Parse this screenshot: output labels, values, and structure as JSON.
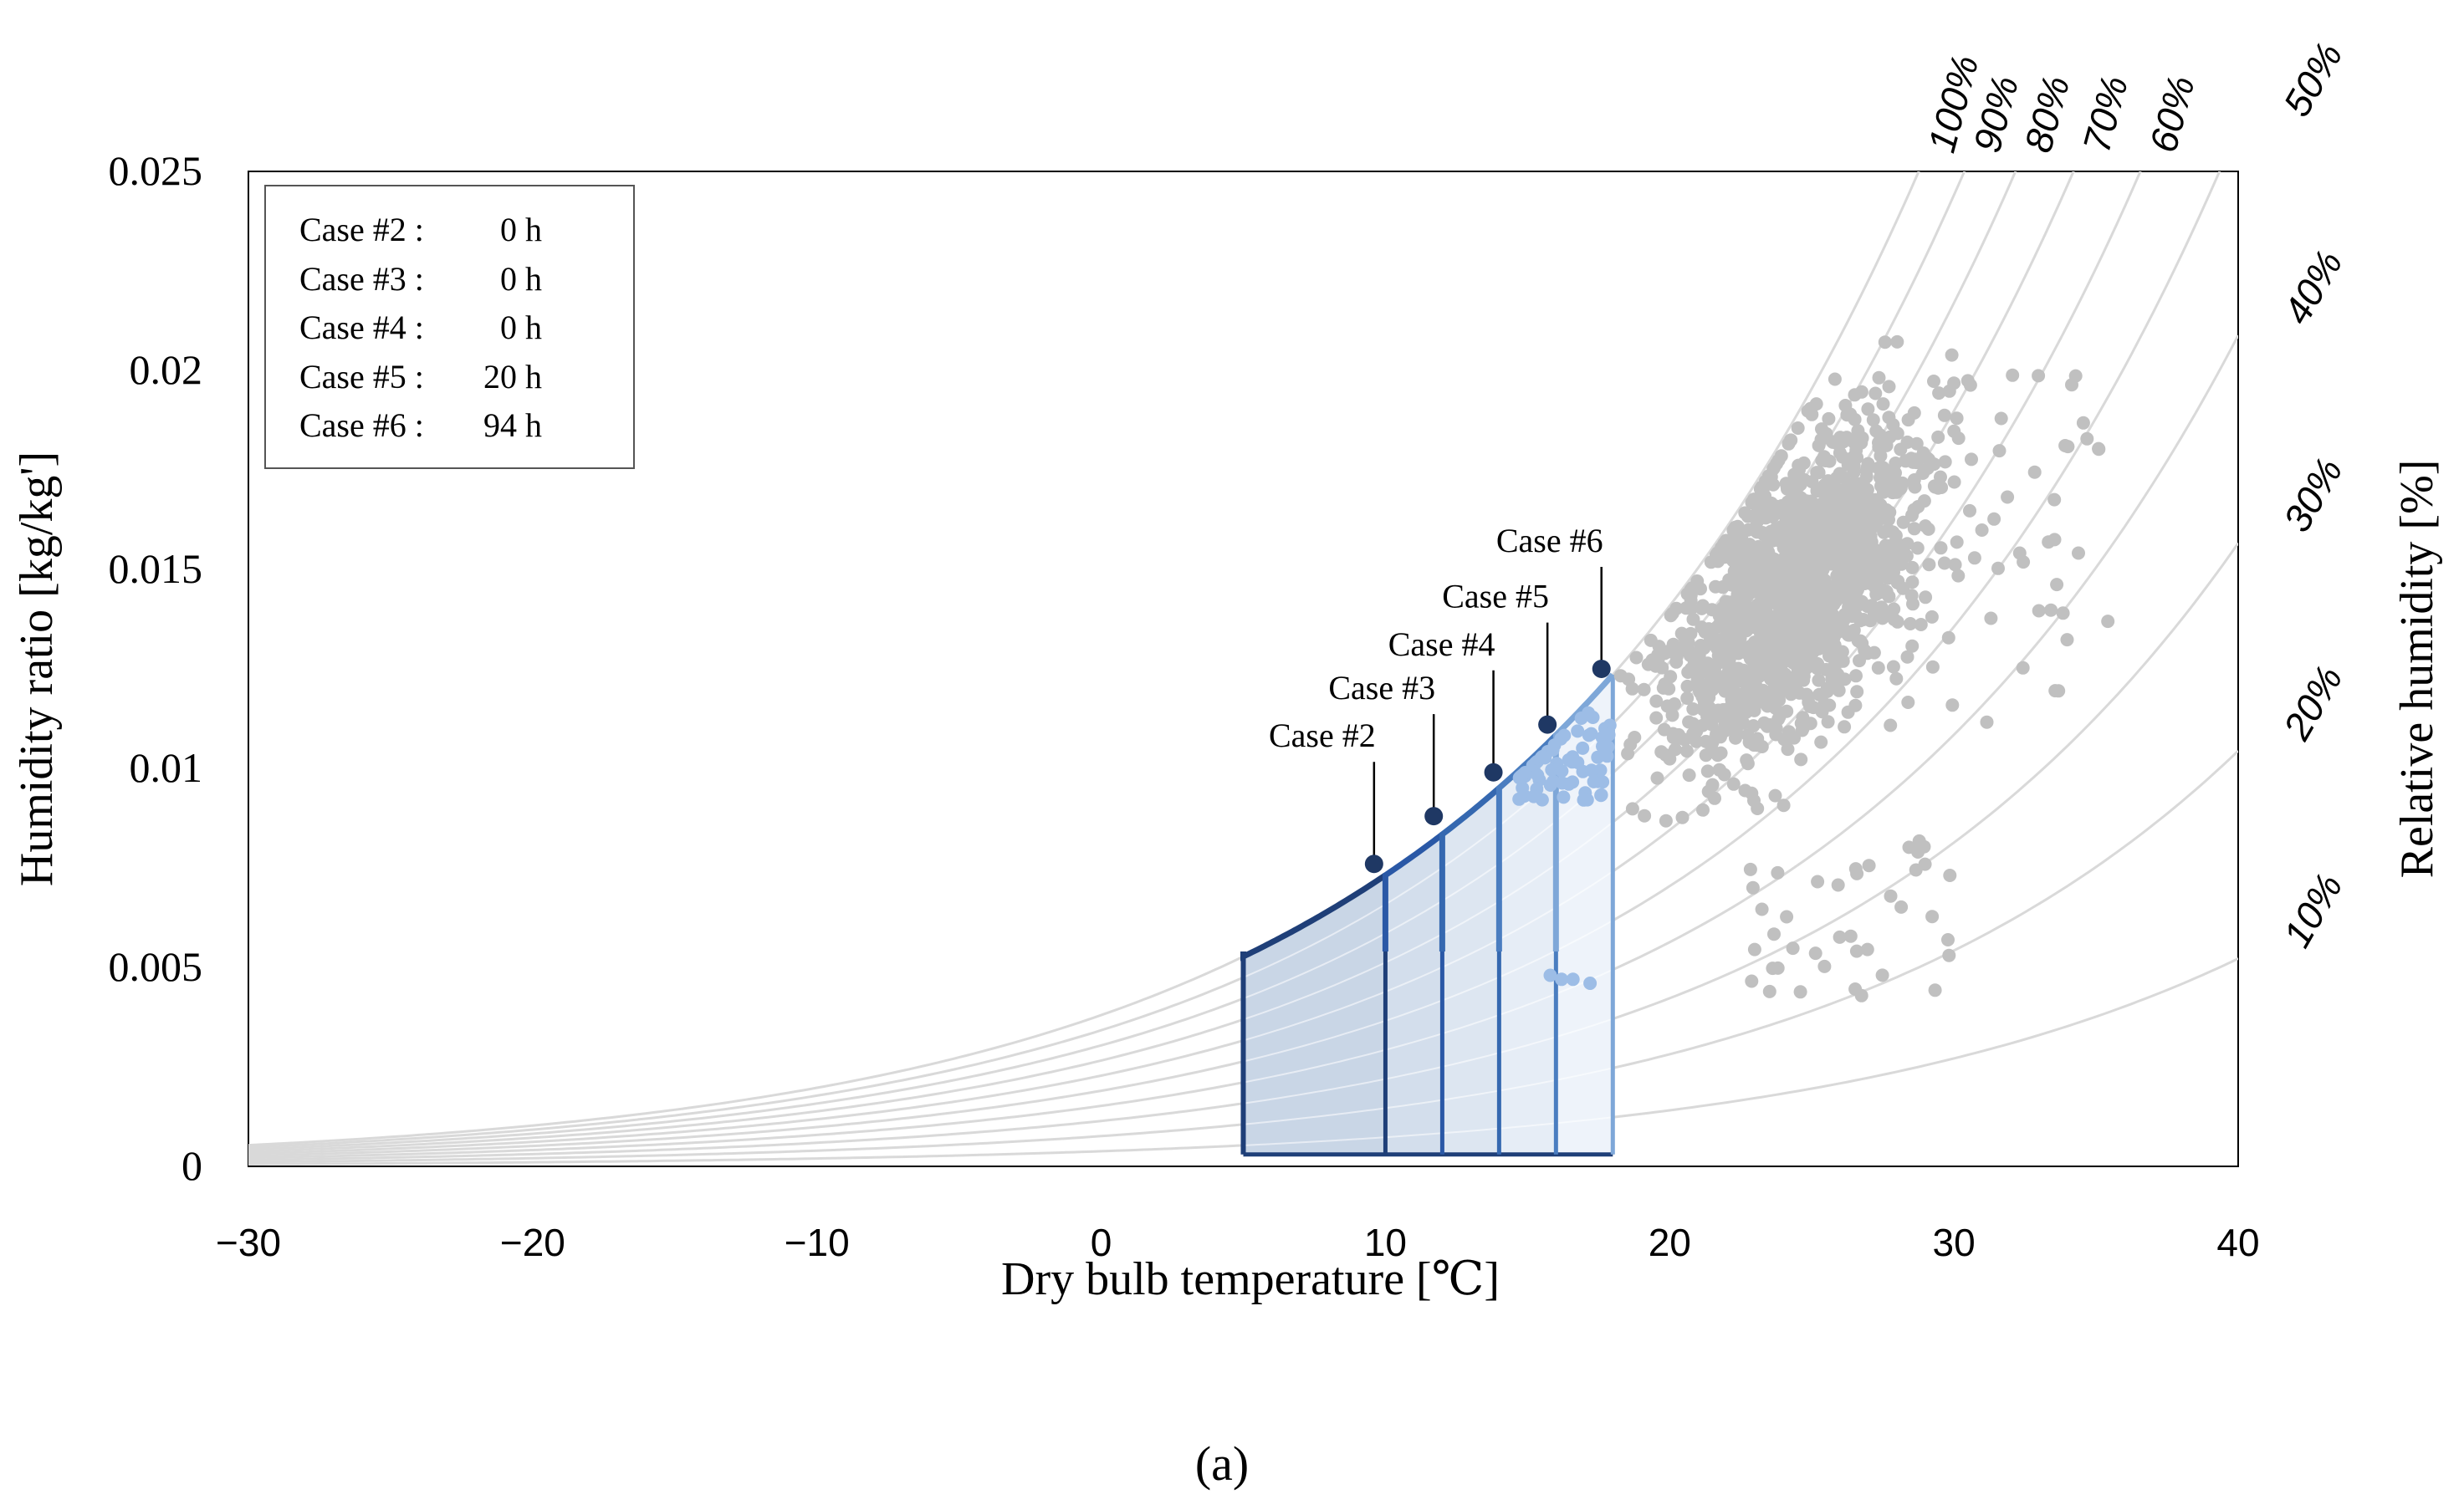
{
  "chart_data": {
    "type": "scatter",
    "subtype": "psychrometric-chart",
    "panel_label": "(a)",
    "xlabel": "Dry bulb temperature [℃]",
    "ylabel": "Humidity ratio [kg/kg']",
    "y2label": "Relative humidity [%]",
    "xlim": [
      -30,
      40
    ],
    "ylim": [
      0,
      0.025
    ],
    "x_ticks": [
      "−30",
      "−20",
      "−10",
      "0",
      "10",
      "20",
      "30",
      "40"
    ],
    "x_tick_values": [
      -30,
      -20,
      -10,
      0,
      10,
      20,
      30,
      40
    ],
    "y_ticks": [
      "0",
      "0.005",
      "0.01",
      "0.015",
      "0.02",
      "0.025"
    ],
    "y_tick_values": [
      0,
      0.005,
      0.01,
      0.015,
      0.02,
      0.025
    ],
    "rh_curves": [
      {
        "rh": 100,
        "label": "100%"
      },
      {
        "rh": 90,
        "label": "90%"
      },
      {
        "rh": 80,
        "label": "80%"
      },
      {
        "rh": 70,
        "label": "70%"
      },
      {
        "rh": 60,
        "label": "60%"
      },
      {
        "rh": 50,
        "label": "50%"
      },
      {
        "rh": 40,
        "label": "40%"
      },
      {
        "rh": 30,
        "label": "30%"
      },
      {
        "rh": 20,
        "label": "20%"
      },
      {
        "rh": 10,
        "label": "10%"
      }
    ],
    "legend": [
      {
        "case": "Case #2 :",
        "hours": "0 h"
      },
      {
        "case": "Case #3 :",
        "hours": "0 h"
      },
      {
        "case": "Case #4 :",
        "hours": "0 h"
      },
      {
        "case": "Case #5 :",
        "hours": "20 h"
      },
      {
        "case": "Case #6 :",
        "hours": "94 h"
      }
    ],
    "comfort_zone": {
      "t_min": 5,
      "w_min": 0.0003,
      "w_at_tmin": 0.0054,
      "rh_limit": 100
    },
    "cases": [
      {
        "label": "Case #2",
        "t_max": 10,
        "point": [
          9.6,
          0.0076
        ],
        "color": "#1f3f78"
      },
      {
        "label": "Case #3",
        "t_max": 12,
        "point": [
          11.7,
          0.0088
        ],
        "color": "#2a58a6"
      },
      {
        "label": "Case #4",
        "t_max": 14,
        "point": [
          13.8,
          0.0099
        ],
        "color": "#3568b0"
      },
      {
        "label": "Case #5",
        "t_max": 16,
        "point": [
          15.7,
          0.0111
        ],
        "color": "#4a7dc0"
      },
      {
        "label": "Case #6",
        "t_max": 18,
        "point": [
          17.6,
          0.0125
        ],
        "color": "#7ea7d8"
      }
    ],
    "scatter_groups": [
      {
        "name": "outdoor-hourly",
        "color": "#c0c0c0"
      },
      {
        "name": "within-case-6-zone",
        "color": "#9dbde6"
      }
    ]
  }
}
